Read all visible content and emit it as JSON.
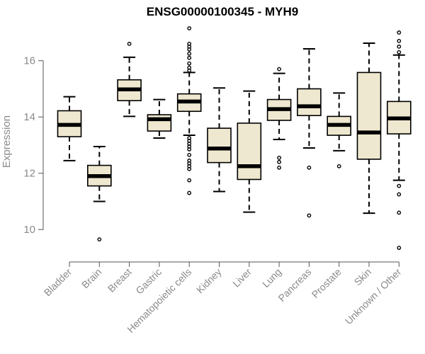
{
  "chart_data": {
    "type": "box",
    "title": "ENSG00000100345 - MYH9",
    "ylabel": "Expression",
    "xlabel": "",
    "ylim": [
      9.1,
      17.2
    ],
    "yticks": [
      10,
      12,
      14,
      16
    ],
    "colors": {
      "box_fill": "#efe8d0",
      "box_stroke": "#000000",
      "median": "#000000",
      "axis": "#555555",
      "text": "#8a8a8a"
    },
    "categories": [
      "Bladder",
      "Brain",
      "Breast",
      "Gastric",
      "Hematopoietic cells",
      "Kidney",
      "Liver",
      "Lung",
      "Pancreas",
      "Prostate",
      "Skin",
      "Unknown / Other"
    ],
    "boxes": [
      {
        "category": "Bladder",
        "whisker_low": 12.45,
        "q1": 13.3,
        "median": 13.72,
        "q3": 14.22,
        "whisker_high": 14.72,
        "outliers": []
      },
      {
        "category": "Brain",
        "whisker_low": 11.0,
        "q1": 11.55,
        "median": 11.9,
        "q3": 12.28,
        "whisker_high": 12.95,
        "outliers": [
          9.65
        ]
      },
      {
        "category": "Breast",
        "whisker_low": 14.02,
        "q1": 14.58,
        "median": 14.98,
        "q3": 15.32,
        "whisker_high": 16.12,
        "outliers": [
          16.6
        ]
      },
      {
        "category": "Gastric",
        "whisker_low": 13.25,
        "q1": 13.5,
        "median": 13.92,
        "q3": 14.08,
        "whisker_high": 14.62,
        "outliers": []
      },
      {
        "category": "Hematopoietic cells",
        "whisker_low": 13.35,
        "q1": 14.2,
        "median": 14.55,
        "q3": 14.82,
        "whisker_high": 15.58,
        "outliers": [
          17.15,
          16.6,
          16.5,
          16.4,
          16.25,
          16.1,
          15.9,
          15.75,
          15.65,
          13.25,
          13.15,
          13.05,
          12.95,
          12.85,
          12.65,
          12.45,
          12.35,
          12.25,
          12.15,
          11.75,
          11.3
        ]
      },
      {
        "category": "Kidney",
        "whisker_low": 11.35,
        "q1": 12.38,
        "median": 12.88,
        "q3": 13.6,
        "whisker_high": 15.03,
        "outliers": []
      },
      {
        "category": "Liver",
        "whisker_low": 10.62,
        "q1": 11.78,
        "median": 12.25,
        "q3": 13.78,
        "whisker_high": 14.92,
        "outliers": []
      },
      {
        "category": "Lung",
        "whisker_low": 13.2,
        "q1": 13.88,
        "median": 14.28,
        "q3": 14.62,
        "whisker_high": 15.55,
        "outliers": [
          15.7,
          12.55,
          12.4,
          12.2
        ]
      },
      {
        "category": "Pancreas",
        "whisker_low": 12.9,
        "q1": 14.05,
        "median": 14.38,
        "q3": 15.0,
        "whisker_high": 16.42,
        "outliers": [
          12.2,
          10.5
        ]
      },
      {
        "category": "Prostate",
        "whisker_low": 12.8,
        "q1": 13.35,
        "median": 13.72,
        "q3": 14.02,
        "whisker_high": 14.85,
        "outliers": [
          12.25
        ]
      },
      {
        "category": "Skin",
        "whisker_low": 10.58,
        "q1": 12.5,
        "median": 13.45,
        "q3": 15.58,
        "whisker_high": 16.62,
        "outliers": []
      },
      {
        "category": "Unknown / Other",
        "whisker_low": 11.75,
        "q1": 13.4,
        "median": 13.95,
        "q3": 14.55,
        "whisker_high": 16.2,
        "outliers": [
          17.0,
          16.7,
          16.5,
          16.3,
          11.55,
          11.25,
          10.6,
          9.35
        ]
      }
    ]
  }
}
